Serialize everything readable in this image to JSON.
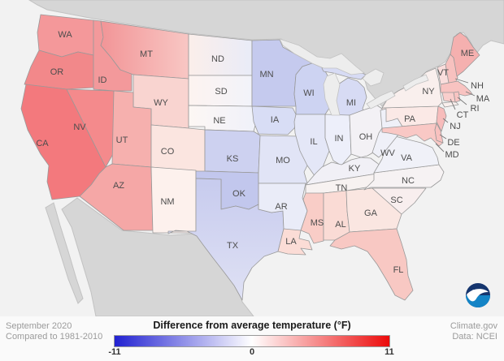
{
  "footer": {
    "period": "September 2020",
    "baseline": "Compared to 1981-2010",
    "site": "Climate.gov",
    "data_source": "Data: NCEI"
  },
  "legend": {
    "title": "Difference from average temperature (°F)",
    "tick_min": "-11",
    "tick_mid": "0",
    "tick_max": "11",
    "gradient": [
      "#2121d1",
      "#ffffff",
      "#ec0b0b"
    ]
  },
  "logo": {
    "text": "NOAA"
  },
  "map": {
    "ocean_color": "#f2f2f2",
    "foreign_land_color": "#d6d6d6",
    "foreign_land_edge": "#c2c2c2",
    "lake_color": "#ededed",
    "state_border_color": "#999999",
    "label_color": "#4d4d4d",
    "states": [
      {
        "abbr": "WA",
        "fill": "#f4989a",
        "value": 4.5
      },
      {
        "abbr": "OR",
        "fill": "#f2888a",
        "value": 5
      },
      {
        "abbr": "CA",
        "fill": "#f3797d",
        "value": 5.5
      },
      {
        "abbr": "NV",
        "fill": "#f48a8c",
        "value": 5
      },
      {
        "abbr": "ID",
        "fill": "#f3999b",
        "value": 4.5
      },
      {
        "abbr": "MT",
        "fill": "#f29597",
        "fill2": "#f8c7c4",
        "dir": "h",
        "value": 4
      },
      {
        "abbr": "WY",
        "fill": "#f9d4d0",
        "value": 1.5
      },
      {
        "abbr": "UT",
        "fill": "#f6b0ae",
        "value": 3.5
      },
      {
        "abbr": "CO",
        "fill": "#fbe5e0",
        "value": 1
      },
      {
        "abbr": "AZ",
        "fill": "#f5a7a6",
        "value": 3.5
      },
      {
        "abbr": "NM",
        "fill": "#fdf1ed",
        "value": 0.5
      },
      {
        "abbr": "ND",
        "fill": "#fbeeea",
        "fill2": "#e9ecf8",
        "dir": "h",
        "value": 0.5
      },
      {
        "abbr": "SD",
        "fill": "#fdf3f0",
        "fill2": "#f2f3fa",
        "dir": "h",
        "value": 0.5
      },
      {
        "abbr": "NE",
        "fill": "#fdf7f4",
        "fill2": "#eff1fa",
        "dir": "h",
        "value": 0
      },
      {
        "abbr": "KS",
        "fill": "#cdd1f0",
        "value": -3
      },
      {
        "abbr": "OK",
        "fill": "#c2c7ed",
        "value": -4
      },
      {
        "abbr": "TX",
        "fill": "#c7cbee",
        "fill2": "#dfe1f4",
        "dir": "v",
        "value": -3.5
      },
      {
        "abbr": "MN",
        "fill": "#c5caee",
        "value": -3.5
      },
      {
        "abbr": "IA",
        "fill": "#d8ddf5",
        "value": -2.5
      },
      {
        "abbr": "MO",
        "fill": "#e1e4f6",
        "value": -2
      },
      {
        "abbr": "AR",
        "fill": "#eaecf8",
        "value": -1
      },
      {
        "abbr": "LA",
        "fill": "#fbdcd6",
        "value": 1.5
      },
      {
        "abbr": "WI",
        "fill": "#cdd3f2",
        "value": -3
      },
      {
        "abbr": "IL",
        "fill": "#e4e7f7",
        "value": -1.5
      },
      {
        "abbr": "MI",
        "fill": "#d7dbf4",
        "value": -2.5
      },
      {
        "abbr": "IN",
        "fill": "#edeffa",
        "value": -1
      },
      {
        "abbr": "OH",
        "fill": "#f3f1f5",
        "value": -0.5
      },
      {
        "abbr": "KY",
        "fill": "#f1f0f6",
        "value": -0.5
      },
      {
        "abbr": "TN",
        "fill": "#f7f2f1",
        "value": 0
      },
      {
        "abbr": "MS",
        "fill": "#f9cdc7",
        "value": 2
      },
      {
        "abbr": "AL",
        "fill": "#fadbd5",
        "value": 1.5
      },
      {
        "abbr": "GA",
        "fill": "#fae6e1",
        "value": 1
      },
      {
        "abbr": "FL",
        "fill": "#f8c8c3",
        "value": 2.5
      },
      {
        "abbr": "SC",
        "fill": "#f8eeee",
        "value": 0.5
      },
      {
        "abbr": "NC",
        "fill": "#f6f2f3",
        "value": 0
      },
      {
        "abbr": "VA",
        "fill": "#f0f1f8",
        "value": -0.5
      },
      {
        "abbr": "PA",
        "fill": "#fbe9e6",
        "value": 1
      },
      {
        "abbr": "NY",
        "fill": "#f9efed",
        "value": 0.5
      },
      {
        "abbr": "WV",
        "fill": "#eff0f8",
        "value": -0.5
      },
      {
        "abbr": "MD",
        "fill": "#f9c8c5",
        "value": 2.5
      },
      {
        "abbr": "DE",
        "fill": "#f8c1bf",
        "value": 2.5
      },
      {
        "abbr": "NJ",
        "fill": "#f7bcbb",
        "value": 3
      },
      {
        "abbr": "VT",
        "fill": "#f9dddc",
        "value": 1.5
      },
      {
        "abbr": "NH",
        "fill": "#f7c1bf",
        "value": 2.5
      },
      {
        "abbr": "ME",
        "fill": "#f5b0af",
        "value": 3.5
      },
      {
        "abbr": "MA",
        "fill": "#f8c3c1",
        "value": 2.5
      },
      {
        "abbr": "RI",
        "fill": "#f8c4c2",
        "value": 2.5
      },
      {
        "abbr": "CT",
        "fill": "#f9cecc",
        "value": 2
      }
    ]
  },
  "chart_data": {
    "type": "choropleth_map",
    "title": "Difference from average temperature (°F)",
    "subtitle": "September 2020 compared to 1981-2010",
    "unit": "°F anomaly",
    "scale_min": -11,
    "scale_max": 11,
    "scale_colors": [
      "#2121d1",
      "#ffffff",
      "#ec0b0b"
    ],
    "legend_position": "bottom",
    "series": [
      {
        "state": "WA",
        "anomaly_f": 4.5
      },
      {
        "state": "OR",
        "anomaly_f": 5
      },
      {
        "state": "CA",
        "anomaly_f": 5.5
      },
      {
        "state": "NV",
        "anomaly_f": 5
      },
      {
        "state": "ID",
        "anomaly_f": 4.5
      },
      {
        "state": "MT",
        "anomaly_f": 4
      },
      {
        "state": "WY",
        "anomaly_f": 1.5
      },
      {
        "state": "UT",
        "anomaly_f": 3.5
      },
      {
        "state": "CO",
        "anomaly_f": 1
      },
      {
        "state": "AZ",
        "anomaly_f": 3.5
      },
      {
        "state": "NM",
        "anomaly_f": 0.5
      },
      {
        "state": "ND",
        "anomaly_f": 0.5
      },
      {
        "state": "SD",
        "anomaly_f": 0.5
      },
      {
        "state": "NE",
        "anomaly_f": 0
      },
      {
        "state": "KS",
        "anomaly_f": -3
      },
      {
        "state": "OK",
        "anomaly_f": -4
      },
      {
        "state": "TX",
        "anomaly_f": -3.5
      },
      {
        "state": "MN",
        "anomaly_f": -3.5
      },
      {
        "state": "IA",
        "anomaly_f": -2.5
      },
      {
        "state": "MO",
        "anomaly_f": -2
      },
      {
        "state": "AR",
        "anomaly_f": -1
      },
      {
        "state": "LA",
        "anomaly_f": 1.5
      },
      {
        "state": "WI",
        "anomaly_f": -3
      },
      {
        "state": "IL",
        "anomaly_f": -1.5
      },
      {
        "state": "MI",
        "anomaly_f": -2.5
      },
      {
        "state": "IN",
        "anomaly_f": -1
      },
      {
        "state": "OH",
        "anomaly_f": -0.5
      },
      {
        "state": "KY",
        "anomaly_f": -0.5
      },
      {
        "state": "TN",
        "anomaly_f": 0
      },
      {
        "state": "MS",
        "anomaly_f": 2
      },
      {
        "state": "AL",
        "anomaly_f": 1.5
      },
      {
        "state": "GA",
        "anomaly_f": 1
      },
      {
        "state": "FL",
        "anomaly_f": 2.5
      },
      {
        "state": "SC",
        "anomaly_f": 0.5
      },
      {
        "state": "NC",
        "anomaly_f": 0
      },
      {
        "state": "VA",
        "anomaly_f": -0.5
      },
      {
        "state": "PA",
        "anomaly_f": 1
      },
      {
        "state": "NY",
        "anomaly_f": 0.5
      },
      {
        "state": "WV",
        "anomaly_f": -0.5
      },
      {
        "state": "MD",
        "anomaly_f": 2.5
      },
      {
        "state": "DE",
        "anomaly_f": 2.5
      },
      {
        "state": "NJ",
        "anomaly_f": 3
      },
      {
        "state": "VT",
        "anomaly_f": 1.5
      },
      {
        "state": "NH",
        "anomaly_f": 2.5
      },
      {
        "state": "ME",
        "anomaly_f": 3.5
      },
      {
        "state": "MA",
        "anomaly_f": 2.5
      },
      {
        "state": "RI",
        "anomaly_f": 2.5
      },
      {
        "state": "CT",
        "anomaly_f": 2
      }
    ]
  }
}
